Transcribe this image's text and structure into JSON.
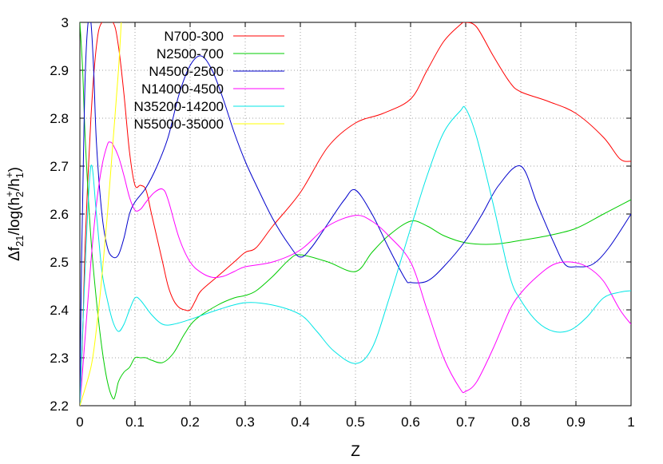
{
  "chart_data": {
    "type": "line",
    "title": "",
    "xlabel": "Z",
    "ylabel": "Δf21/log(h2+/h1+)",
    "ylabel_parts": {
      "main": "Δf",
      "sub1": "21",
      "mid": "/log(h",
      "sub2": "2",
      "sup2": "+",
      "slash": "/h",
      "sub3": "1",
      "sup3": "+",
      "close": ")"
    },
    "xlim": [
      0,
      1
    ],
    "ylim": [
      2.2,
      3.0
    ],
    "x_ticks": [
      "0",
      "0.1",
      "0.2",
      "0.3",
      "0.4",
      "0.5",
      "0.6",
      "0.7",
      "0.8",
      "0.9",
      "1"
    ],
    "y_ticks": [
      "2.2",
      "2.3",
      "2.4",
      "2.5",
      "2.6",
      "2.7",
      "2.8",
      "2.9",
      "3"
    ],
    "grid": true,
    "legend_position": "top-left",
    "series": [
      {
        "name": "N700-300",
        "color": "#ff0000",
        "points": [
          [
            0.0,
            2.2
          ],
          [
            0.005,
            2.35
          ],
          [
            0.01,
            2.55
          ],
          [
            0.02,
            2.8
          ],
          [
            0.03,
            2.95
          ],
          [
            0.04,
            3.0
          ],
          [
            0.06,
            3.0
          ],
          [
            0.07,
            2.95
          ],
          [
            0.08,
            2.85
          ],
          [
            0.09,
            2.73
          ],
          [
            0.1,
            2.66
          ],
          [
            0.11,
            2.66
          ],
          [
            0.12,
            2.65
          ],
          [
            0.13,
            2.6
          ],
          [
            0.14,
            2.55
          ],
          [
            0.15,
            2.5
          ],
          [
            0.16,
            2.45
          ],
          [
            0.17,
            2.42
          ],
          [
            0.18,
            2.405
          ],
          [
            0.19,
            2.4
          ],
          [
            0.2,
            2.4
          ],
          [
            0.21,
            2.42
          ],
          [
            0.22,
            2.44
          ],
          [
            0.25,
            2.47
          ],
          [
            0.28,
            2.5
          ],
          [
            0.3,
            2.52
          ],
          [
            0.32,
            2.53
          ],
          [
            0.35,
            2.575
          ],
          [
            0.4,
            2.645
          ],
          [
            0.45,
            2.74
          ],
          [
            0.5,
            2.79
          ],
          [
            0.55,
            2.81
          ],
          [
            0.6,
            2.84
          ],
          [
            0.63,
            2.9
          ],
          [
            0.66,
            2.96
          ],
          [
            0.69,
            2.995
          ],
          [
            0.7,
            3.0
          ],
          [
            0.72,
            2.99
          ],
          [
            0.75,
            2.93
          ],
          [
            0.78,
            2.875
          ],
          [
            0.8,
            2.855
          ],
          [
            0.85,
            2.835
          ],
          [
            0.9,
            2.81
          ],
          [
            0.95,
            2.76
          ],
          [
            0.98,
            2.715
          ],
          [
            1.0,
            2.71
          ]
        ]
      },
      {
        "name": "N2500-700",
        "color": "#00cc00",
        "points": [
          [
            0.0,
            3.0
          ],
          [
            0.005,
            2.9
          ],
          [
            0.01,
            2.75
          ],
          [
            0.02,
            2.55
          ],
          [
            0.03,
            2.42
          ],
          [
            0.04,
            2.32
          ],
          [
            0.05,
            2.25
          ],
          [
            0.06,
            2.215
          ],
          [
            0.065,
            2.225
          ],
          [
            0.07,
            2.25
          ],
          [
            0.08,
            2.27
          ],
          [
            0.09,
            2.28
          ],
          [
            0.1,
            2.3
          ],
          [
            0.11,
            2.3
          ],
          [
            0.12,
            2.3
          ],
          [
            0.13,
            2.295
          ],
          [
            0.15,
            2.29
          ],
          [
            0.17,
            2.31
          ],
          [
            0.19,
            2.35
          ],
          [
            0.21,
            2.38
          ],
          [
            0.25,
            2.41
          ],
          [
            0.28,
            2.425
          ],
          [
            0.3,
            2.43
          ],
          [
            0.32,
            2.44
          ],
          [
            0.35,
            2.47
          ],
          [
            0.38,
            2.505
          ],
          [
            0.4,
            2.515
          ],
          [
            0.45,
            2.5
          ],
          [
            0.5,
            2.48
          ],
          [
            0.53,
            2.52
          ],
          [
            0.56,
            2.555
          ],
          [
            0.6,
            2.585
          ],
          [
            0.63,
            2.575
          ],
          [
            0.66,
            2.555
          ],
          [
            0.7,
            2.54
          ],
          [
            0.75,
            2.537
          ],
          [
            0.8,
            2.545
          ],
          [
            0.85,
            2.555
          ],
          [
            0.9,
            2.57
          ],
          [
            0.95,
            2.6
          ],
          [
            1.0,
            2.63
          ]
        ]
      },
      {
        "name": "N4500-2500",
        "color": "#0000cc",
        "points": [
          [
            0.0,
            2.2
          ],
          [
            0.003,
            2.5
          ],
          [
            0.007,
            2.75
          ],
          [
            0.01,
            2.9
          ],
          [
            0.015,
            3.0
          ],
          [
            0.02,
            3.0
          ],
          [
            0.025,
            2.9
          ],
          [
            0.03,
            2.75
          ],
          [
            0.04,
            2.6
          ],
          [
            0.05,
            2.53
          ],
          [
            0.06,
            2.51
          ],
          [
            0.07,
            2.515
          ],
          [
            0.08,
            2.55
          ],
          [
            0.09,
            2.6
          ],
          [
            0.1,
            2.625
          ],
          [
            0.12,
            2.655
          ],
          [
            0.14,
            2.7
          ],
          [
            0.16,
            2.76
          ],
          [
            0.18,
            2.85
          ],
          [
            0.2,
            2.91
          ],
          [
            0.22,
            2.93
          ],
          [
            0.24,
            2.9
          ],
          [
            0.26,
            2.84
          ],
          [
            0.28,
            2.77
          ],
          [
            0.3,
            2.71
          ],
          [
            0.32,
            2.66
          ],
          [
            0.35,
            2.59
          ],
          [
            0.38,
            2.535
          ],
          [
            0.4,
            2.51
          ],
          [
            0.42,
            2.53
          ],
          [
            0.45,
            2.58
          ],
          [
            0.48,
            2.63
          ],
          [
            0.5,
            2.65
          ],
          [
            0.53,
            2.6
          ],
          [
            0.56,
            2.53
          ],
          [
            0.59,
            2.465
          ],
          [
            0.6,
            2.457
          ],
          [
            0.63,
            2.46
          ],
          [
            0.66,
            2.49
          ],
          [
            0.7,
            2.545
          ],
          [
            0.73,
            2.6
          ],
          [
            0.76,
            2.66
          ],
          [
            0.8,
            2.7
          ],
          [
            0.83,
            2.62
          ],
          [
            0.86,
            2.54
          ],
          [
            0.88,
            2.495
          ],
          [
            0.9,
            2.49
          ],
          [
            0.93,
            2.495
          ],
          [
            0.96,
            2.53
          ],
          [
            1.0,
            2.6
          ]
        ]
      },
      {
        "name": "N14000-4500",
        "color": "#ff00ff",
        "points": [
          [
            0.0,
            2.2
          ],
          [
            0.01,
            2.35
          ],
          [
            0.02,
            2.5
          ],
          [
            0.03,
            2.62
          ],
          [
            0.04,
            2.7
          ],
          [
            0.05,
            2.745
          ],
          [
            0.055,
            2.75
          ],
          [
            0.06,
            2.745
          ],
          [
            0.07,
            2.72
          ],
          [
            0.08,
            2.68
          ],
          [
            0.09,
            2.635
          ],
          [
            0.1,
            2.608
          ],
          [
            0.11,
            2.61
          ],
          [
            0.12,
            2.625
          ],
          [
            0.135,
            2.645
          ],
          [
            0.15,
            2.652
          ],
          [
            0.16,
            2.63
          ],
          [
            0.18,
            2.55
          ],
          [
            0.2,
            2.5
          ],
          [
            0.22,
            2.478
          ],
          [
            0.24,
            2.468
          ],
          [
            0.26,
            2.47
          ],
          [
            0.28,
            2.48
          ],
          [
            0.3,
            2.49
          ],
          [
            0.35,
            2.5
          ],
          [
            0.4,
            2.525
          ],
          [
            0.45,
            2.575
          ],
          [
            0.5,
            2.597
          ],
          [
            0.53,
            2.585
          ],
          [
            0.56,
            2.555
          ],
          [
            0.6,
            2.5
          ],
          [
            0.63,
            2.4
          ],
          [
            0.66,
            2.3
          ],
          [
            0.69,
            2.235
          ],
          [
            0.7,
            2.23
          ],
          [
            0.72,
            2.25
          ],
          [
            0.75,
            2.32
          ],
          [
            0.78,
            2.4
          ],
          [
            0.8,
            2.435
          ],
          [
            0.83,
            2.47
          ],
          [
            0.86,
            2.495
          ],
          [
            0.89,
            2.5
          ],
          [
            0.92,
            2.49
          ],
          [
            0.95,
            2.46
          ],
          [
            0.98,
            2.4
          ],
          [
            1.0,
            2.37
          ]
        ]
      },
      {
        "name": "N35200-14200",
        "color": "#00e5e5",
        "points": [
          [
            0.0,
            2.2
          ],
          [
            0.01,
            2.5
          ],
          [
            0.02,
            2.7
          ],
          [
            0.03,
            2.6
          ],
          [
            0.04,
            2.48
          ],
          [
            0.05,
            2.42
          ],
          [
            0.06,
            2.375
          ],
          [
            0.07,
            2.355
          ],
          [
            0.08,
            2.37
          ],
          [
            0.09,
            2.4
          ],
          [
            0.1,
            2.425
          ],
          [
            0.11,
            2.42
          ],
          [
            0.13,
            2.39
          ],
          [
            0.15,
            2.37
          ],
          [
            0.17,
            2.37
          ],
          [
            0.2,
            2.38
          ],
          [
            0.25,
            2.4
          ],
          [
            0.3,
            2.415
          ],
          [
            0.35,
            2.41
          ],
          [
            0.4,
            2.39
          ],
          [
            0.43,
            2.355
          ],
          [
            0.46,
            2.315
          ],
          [
            0.5,
            2.288
          ],
          [
            0.53,
            2.32
          ],
          [
            0.56,
            2.42
          ],
          [
            0.6,
            2.57
          ],
          [
            0.63,
            2.68
          ],
          [
            0.66,
            2.77
          ],
          [
            0.69,
            2.815
          ],
          [
            0.7,
            2.82
          ],
          [
            0.72,
            2.76
          ],
          [
            0.75,
            2.62
          ],
          [
            0.78,
            2.47
          ],
          [
            0.8,
            2.42
          ],
          [
            0.83,
            2.375
          ],
          [
            0.86,
            2.355
          ],
          [
            0.89,
            2.358
          ],
          [
            0.92,
            2.385
          ],
          [
            0.95,
            2.425
          ],
          [
            0.98,
            2.437
          ],
          [
            1.0,
            2.44
          ]
        ]
      },
      {
        "name": "N55000-35000",
        "color": "#ffff00",
        "points": [
          [
            0.0,
            2.2
          ],
          [
            0.02,
            2.28
          ],
          [
            0.03,
            2.36
          ],
          [
            0.04,
            2.47
          ],
          [
            0.05,
            2.6
          ],
          [
            0.06,
            2.75
          ],
          [
            0.07,
            2.9
          ],
          [
            0.075,
            3.0
          ]
        ]
      }
    ]
  }
}
